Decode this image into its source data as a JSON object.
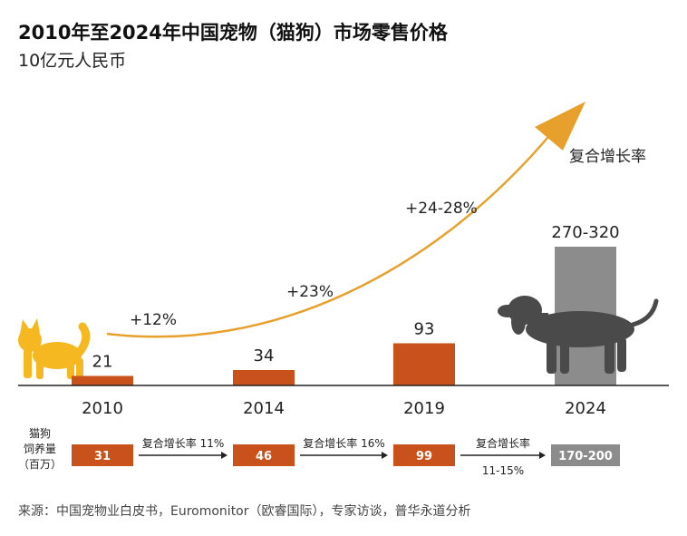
{
  "title": "2010年至2024年中国宠物（猫狗）市场零售价格",
  "subtitle": "10亿元人民币",
  "chart_data": {
    "type": "bar",
    "categories": [
      "2010",
      "2014",
      "2019",
      "2024"
    ],
    "values": [
      21,
      34,
      93,
      null
    ],
    "forecast": {
      "category": "2024",
      "label": "270-320",
      "low": 270,
      "high": 320
    },
    "growth_rates": [
      "+12%",
      "+23%",
      "+24-28%"
    ],
    "arrow_label": "复合增长率",
    "colors": {
      "bar": "#c9511b",
      "forecast": "#8c8c8c",
      "arrow": "#e8a02c",
      "silhouette_cat": "#f5b820",
      "silhouette_dog": "#4a4a4a"
    }
  },
  "pets": {
    "title_lines": [
      "猫狗",
      "饲养量",
      "（百万）"
    ],
    "values": [
      "31",
      "46",
      "99",
      "170-200"
    ],
    "cagr_labels": [
      "复合增长率 11%",
      "复合增长率 16%",
      "复合增长率"
    ],
    "cagr_last_sub": "11-15%"
  },
  "source": "来源：中国宠物业白皮书，Euromonitor（欧睿国际），专家访谈，普华永道分析"
}
